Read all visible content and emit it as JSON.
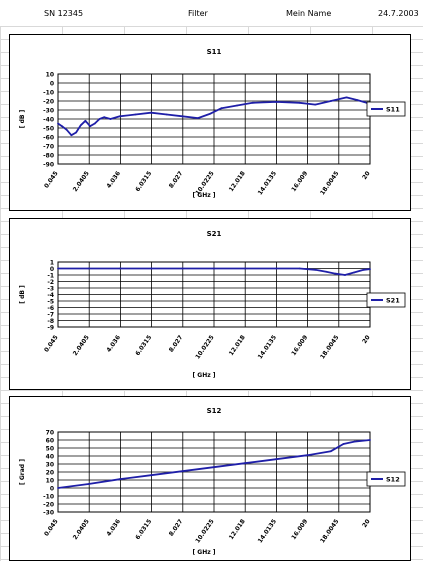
{
  "header": {
    "serial": "SN 12345",
    "type": "Filter",
    "name": "Mein Name",
    "date": "24.7.2003"
  },
  "colors": {
    "series": "#1f1fa8",
    "grid": "#000000",
    "plot_bg": "#ffffff"
  },
  "chart_data": [
    {
      "type": "line",
      "title": "S11",
      "xlabel": "[ GHz ]",
      "ylabel": "[ dB ]",
      "x_ticks": [
        "0.045",
        "2.0405",
        "4.036",
        "6.0315",
        "8.027",
        "10.0225",
        "12.018",
        "14.0135",
        "16.009",
        "18.0045",
        "20"
      ],
      "ylim": [
        -90,
        10
      ],
      "y_step": 10,
      "legend": "right",
      "series": [
        {
          "name": "S11",
          "x": [
            0.045,
            0.3,
            0.6,
            0.9,
            1.2,
            1.5,
            1.8,
            2.1,
            2.4,
            2.7,
            3.0,
            3.4,
            4.0,
            5.0,
            6.0,
            7.0,
            8.0,
            9.0,
            9.8,
            10.5,
            11.5,
            12.5,
            14.0,
            15.5,
            16.5,
            17.5,
            18.5,
            19.2,
            20
          ],
          "y": [
            -45,
            -48,
            -52,
            -58,
            -55,
            -47,
            -42,
            -48,
            -45,
            -40,
            -38,
            -40,
            -37,
            -35,
            -33,
            -35,
            -37,
            -39,
            -34,
            -28,
            -25,
            -22,
            -21,
            -22,
            -24,
            -20,
            -16,
            -19,
            -23
          ]
        }
      ]
    },
    {
      "type": "line",
      "title": "S21",
      "xlabel": "[ GHz ]",
      "ylabel": "[ dB ]",
      "x_ticks": [
        "0.045",
        "2.0405",
        "4.036",
        "6.0315",
        "8.027",
        "10.0225",
        "12.018",
        "14.0135",
        "16.009",
        "18.0045",
        "20"
      ],
      "ylim": [
        -9,
        1
      ],
      "y_step": 1,
      "legend": "right",
      "series": [
        {
          "name": "S21",
          "x": [
            0.045,
            2,
            4,
            6,
            8,
            10,
            12,
            14,
            15.5,
            16.5,
            17.2,
            17.8,
            18.4,
            19.0,
            19.6,
            20
          ],
          "y": [
            0,
            0,
            0,
            0,
            0,
            0,
            0,
            0,
            0,
            -0.2,
            -0.5,
            -0.8,
            -1.0,
            -0.6,
            -0.2,
            -0.1
          ]
        }
      ]
    },
    {
      "type": "line",
      "title": "S12",
      "xlabel": "[ GHz ]",
      "ylabel": "[ Grad ]",
      "x_ticks": [
        "0.045",
        "2.0405",
        "4.036",
        "6.0315",
        "8.027",
        "10.0225",
        "12.018",
        "14.0135",
        "16.009",
        "18.0045",
        "20"
      ],
      "ylim": [
        -30,
        70
      ],
      "y_step": 10,
      "legend": "right",
      "series": [
        {
          "name": "S12",
          "x": [
            0.045,
            2,
            4,
            6,
            8,
            10,
            12,
            14,
            16,
            17.5,
            18.3,
            19.0,
            20
          ],
          "y": [
            0,
            5,
            11,
            16,
            21,
            26,
            31,
            36,
            41,
            46,
            55,
            58,
            60
          ]
        }
      ]
    }
  ]
}
